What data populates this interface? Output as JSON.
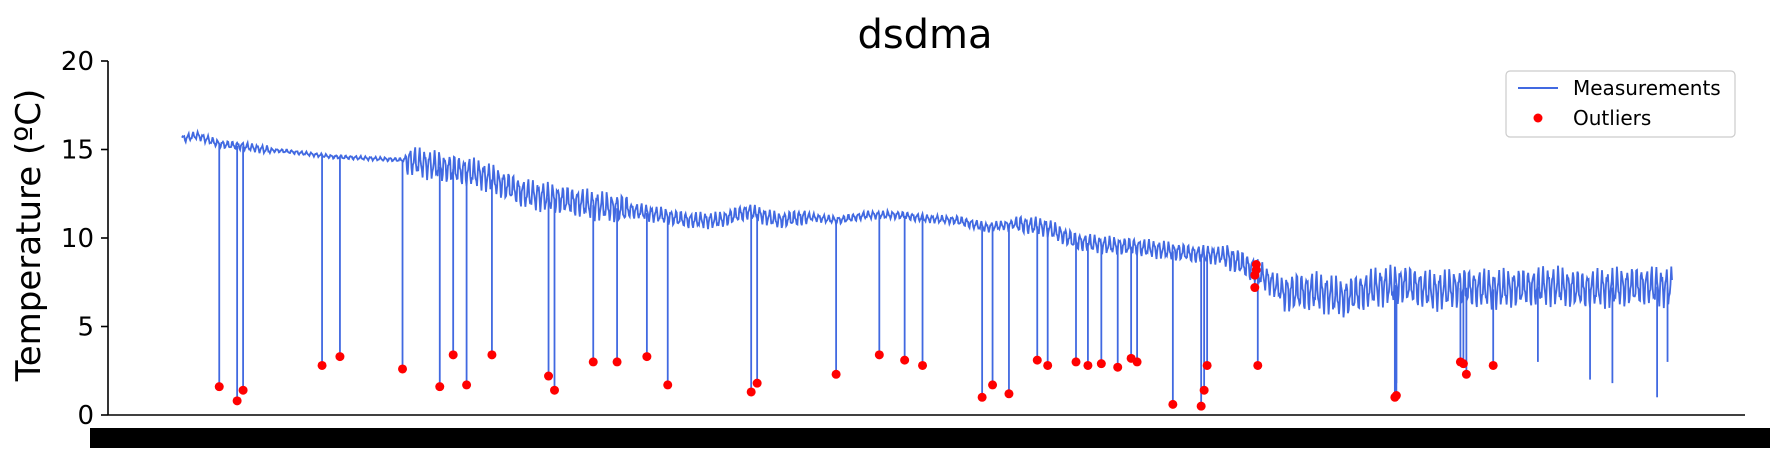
{
  "chart_data": {
    "type": "line",
    "title": "dsdma",
    "ylabel": "Temperature (ºC)",
    "xlabel": "",
    "ylim": [
      0,
      20
    ],
    "yticks": [
      0,
      5,
      10,
      15,
      20
    ],
    "x_range": [
      0,
      1000
    ],
    "grid": false,
    "legend_position": "top-right",
    "colors": {
      "line": "#4169e1",
      "outlier": "#ff0000"
    },
    "series": [
      {
        "name": "Measurements",
        "kind": "line",
        "x": [
          0,
          10,
          25,
          40,
          55,
          70,
          100,
          150,
          200,
          230,
          260,
          280,
          300,
          320,
          340,
          360,
          380,
          400,
          420,
          440,
          460,
          480,
          500,
          520,
          540,
          560,
          580,
          600,
          620,
          640,
          660,
          680,
          700,
          720,
          740,
          760,
          780,
          800,
          820,
          840,
          860,
          880,
          900,
          920,
          940,
          960,
          980,
          1000
        ],
        "y": [
          15.6,
          15.8,
          15.3,
          15.2,
          15.0,
          14.9,
          14.6,
          14.4,
          13.6,
          12.5,
          12.1,
          11.8,
          11.6,
          11.3,
          11.0,
          11.0,
          11.5,
          11.0,
          11.2,
          11.0,
          11.3,
          11.3,
          11.1,
          11.0,
          10.6,
          10.8,
          10.6,
          9.8,
          9.6,
          9.5,
          9.3,
          9.1,
          9.0,
          8.2,
          6.9,
          7.0,
          6.6,
          7.2,
          7.4,
          7.0,
          7.2,
          7.1,
          7.2,
          7.3,
          7.1,
          7.2,
          7.3,
          7.2
        ]
      },
      {
        "name": "Outliers",
        "kind": "scatter",
        "x": [
          25,
          37,
          41,
          94,
          106,
          148,
          173,
          182,
          191,
          208,
          246,
          250,
          276,
          292,
          312,
          326,
          382,
          386,
          439,
          468,
          485,
          497,
          537,
          544,
          555,
          574,
          581,
          600,
          608,
          617,
          628,
          637,
          641,
          665,
          684,
          686,
          688,
          720,
          720,
          721,
          721,
          722,
          814,
          815,
          858,
          860,
          862,
          880
        ],
        "y": [
          1.6,
          0.8,
          1.4,
          2.8,
          3.3,
          2.6,
          1.6,
          3.4,
          1.7,
          3.4,
          2.2,
          1.4,
          3.0,
          3.0,
          3.3,
          1.7,
          1.3,
          1.8,
          2.3,
          3.4,
          3.1,
          2.8,
          1.0,
          1.7,
          1.2,
          3.1,
          2.8,
          3.0,
          2.8,
          2.9,
          2.7,
          3.2,
          3.0,
          0.6,
          0.5,
          1.4,
          2.8,
          7.2,
          7.9,
          8.2,
          8.5,
          2.8,
          1.0,
          1.1,
          3.0,
          2.9,
          2.3,
          2.8
        ]
      }
    ]
  }
}
